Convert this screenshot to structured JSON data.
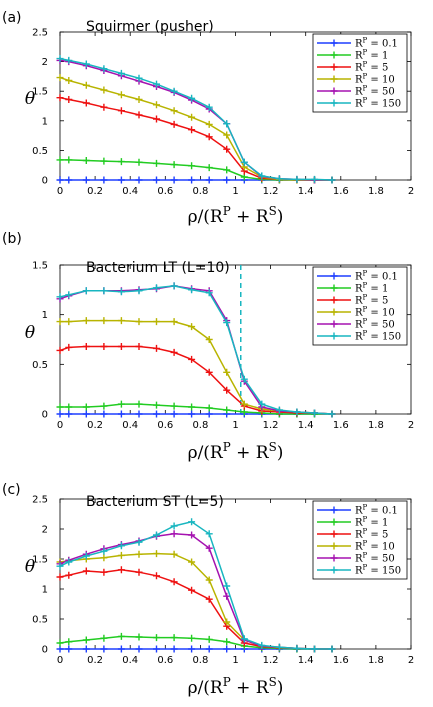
{
  "series_colors": [
    "#1f3fff",
    "#22cc22",
    "#ee1111",
    "#b8b400",
    "#a512b0",
    "#18b6c0"
  ],
  "chart_data": [
    {
      "type": "line",
      "panel_label": "(a)",
      "title": "Squirmer (pusher)",
      "xlabel": "ρ/(R^P + R^S)",
      "ylabel": "θ",
      "xlim": [
        0,
        2
      ],
      "ylim": [
        0,
        2.5
      ],
      "xticks": [
        0,
        0.2,
        0.4,
        0.6,
        0.8,
        1,
        1.2,
        1.4,
        1.6,
        1.8,
        2
      ],
      "yticks": [
        0,
        0.5,
        1,
        1.5,
        2,
        2.5
      ],
      "legend_position": "top-right",
      "x": [
        0,
        0.05,
        0.15,
        0.25,
        0.35,
        0.45,
        0.55,
        0.65,
        0.75,
        0.85,
        0.95,
        1.05,
        1.15,
        1.25,
        1.35,
        1.45,
        1.55
      ],
      "series": [
        {
          "name": "R^P = 0.1",
          "values": [
            0,
            0,
            0,
            0,
            0,
            0,
            0,
            0,
            0,
            0,
            0,
            0,
            0,
            0,
            0,
            0,
            0
          ]
        },
        {
          "name": "R^P = 1",
          "values": [
            0.34,
            0.34,
            0.33,
            0.32,
            0.31,
            0.3,
            0.28,
            0.26,
            0.24,
            0.21,
            0.17,
            0.05,
            0.01,
            0,
            0,
            0,
            0
          ]
        },
        {
          "name": "R^P = 5",
          "values": [
            1.39,
            1.36,
            1.3,
            1.23,
            1.17,
            1.1,
            1.03,
            0.94,
            0.85,
            0.73,
            0.52,
            0.15,
            0.03,
            0.01,
            0,
            0,
            0
          ]
        },
        {
          "name": "R^P = 10",
          "values": [
            1.73,
            1.68,
            1.6,
            1.52,
            1.44,
            1.36,
            1.27,
            1.17,
            1.06,
            0.94,
            0.76,
            0.22,
            0.05,
            0.01,
            0,
            0,
            0
          ]
        },
        {
          "name": "R^P = 50",
          "values": [
            2.02,
            2,
            1.93,
            1.85,
            1.76,
            1.67,
            1.58,
            1.48,
            1.35,
            1.2,
            0.95,
            0.3,
            0.06,
            0.02,
            0.01,
            0,
            0
          ]
        },
        {
          "name": "R^P = 150",
          "values": [
            2.05,
            2.02,
            1.96,
            1.88,
            1.8,
            1.72,
            1.62,
            1.5,
            1.38,
            1.23,
            0.95,
            0.3,
            0.07,
            0.02,
            0.01,
            0.01,
            0
          ]
        }
      ]
    },
    {
      "type": "line",
      "panel_label": "(b)",
      "title": "Bacterium LT (L=10)",
      "xlabel": "ρ/(R^P + R^S)",
      "ylabel": "θ",
      "xlim": [
        0,
        2
      ],
      "ylim": [
        0,
        1.5
      ],
      "xticks": [
        0,
        0.2,
        0.4,
        0.6,
        0.8,
        1,
        1.2,
        1.4,
        1.6,
        1.8,
        2
      ],
      "yticks": [
        0,
        0.5,
        1,
        1.5
      ],
      "legend_position": "top-right",
      "dashed_vline_x": 1.03,
      "x": [
        0,
        0.05,
        0.15,
        0.25,
        0.35,
        0.45,
        0.55,
        0.65,
        0.75,
        0.85,
        0.95,
        1.05,
        1.15,
        1.25,
        1.35,
        1.45,
        1.55
      ],
      "series": [
        {
          "name": "R^P = 0.1",
          "values": [
            0,
            0,
            0,
            0,
            0,
            0,
            0,
            0,
            0,
            0,
            0,
            0,
            0,
            0,
            0,
            0,
            0
          ]
        },
        {
          "name": "R^P = 1",
          "values": [
            0.07,
            0.07,
            0.07,
            0.08,
            0.1,
            0.1,
            0.09,
            0.08,
            0.07,
            0.06,
            0.04,
            0.02,
            0.01,
            0,
            0,
            0,
            0
          ]
        },
        {
          "name": "R^P = 5",
          "values": [
            0.64,
            0.67,
            0.68,
            0.68,
            0.68,
            0.68,
            0.66,
            0.62,
            0.55,
            0.42,
            0.24,
            0.08,
            0.03,
            0.02,
            0.01,
            0.01,
            0
          ]
        },
        {
          "name": "R^P = 10",
          "values": [
            0.93,
            0.93,
            0.94,
            0.94,
            0.94,
            0.93,
            0.93,
            0.93,
            0.88,
            0.75,
            0.42,
            0.1,
            0.05,
            0.03,
            0.02,
            0.01,
            0
          ]
        },
        {
          "name": "R^P = 50",
          "values": [
            1.16,
            1.19,
            1.24,
            1.24,
            1.24,
            1.25,
            1.26,
            1.29,
            1.26,
            1.24,
            0.94,
            0.33,
            0.07,
            0.03,
            0.02,
            0.01,
            0
          ]
        },
        {
          "name": "R^P = 150",
          "values": [
            1.18,
            1.2,
            1.24,
            1.24,
            1.23,
            1.24,
            1.27,
            1.29,
            1.25,
            1.22,
            0.92,
            0.35,
            0.1,
            0.04,
            0.02,
            0.01,
            0
          ]
        }
      ]
    },
    {
      "type": "line",
      "panel_label": "(c)",
      "title": "Bacterium ST (L=5)",
      "xlabel": "ρ/(R^P + R^S)",
      "ylabel": "θ",
      "xlim": [
        0,
        2
      ],
      "ylim": [
        0,
        2.5
      ],
      "xticks": [
        0,
        0.2,
        0.4,
        0.6,
        0.8,
        1,
        1.2,
        1.4,
        1.6,
        1.8,
        2
      ],
      "yticks": [
        0,
        0.5,
        1,
        1.5,
        2,
        2.5
      ],
      "legend_position": "top-right",
      "x": [
        0,
        0.05,
        0.15,
        0.25,
        0.35,
        0.45,
        0.55,
        0.65,
        0.75,
        0.85,
        0.95,
        1.05,
        1.15,
        1.25,
        1.35,
        1.45,
        1.55
      ],
      "series": [
        {
          "name": "R^P = 0.1",
          "values": [
            0,
            0,
            0,
            0,
            0,
            0,
            0,
            0,
            0,
            0,
            0,
            0,
            0,
            0,
            0,
            0,
            0
          ]
        },
        {
          "name": "R^P = 1",
          "values": [
            0.1,
            0.12,
            0.15,
            0.18,
            0.21,
            0.2,
            0.19,
            0.19,
            0.18,
            0.16,
            0.12,
            0.05,
            0.02,
            0.01,
            0,
            0,
            0
          ]
        },
        {
          "name": "R^P = 5",
          "values": [
            1.2,
            1.23,
            1.3,
            1.28,
            1.32,
            1.28,
            1.22,
            1.12,
            0.98,
            0.83,
            0.38,
            0.1,
            0.04,
            0.02,
            0.01,
            0,
            0
          ]
        },
        {
          "name": "R^P = 10",
          "values": [
            1.45,
            1.47,
            1.5,
            1.52,
            1.56,
            1.58,
            1.59,
            1.58,
            1.45,
            1.15,
            0.45,
            0.15,
            0.05,
            0.03,
            0.01,
            0,
            0
          ]
        },
        {
          "name": "R^P = 50",
          "values": [
            1.42,
            1.48,
            1.58,
            1.67,
            1.74,
            1.8,
            1.88,
            1.92,
            1.9,
            1.68,
            0.88,
            0.15,
            0.05,
            0.03,
            0.01,
            0,
            0
          ]
        },
        {
          "name": "R^P = 150",
          "values": [
            1.38,
            1.45,
            1.55,
            1.63,
            1.72,
            1.78,
            1.9,
            2.05,
            2.12,
            1.92,
            1.05,
            0.17,
            0.06,
            0.03,
            0.01,
            0,
            0
          ]
        }
      ]
    }
  ]
}
